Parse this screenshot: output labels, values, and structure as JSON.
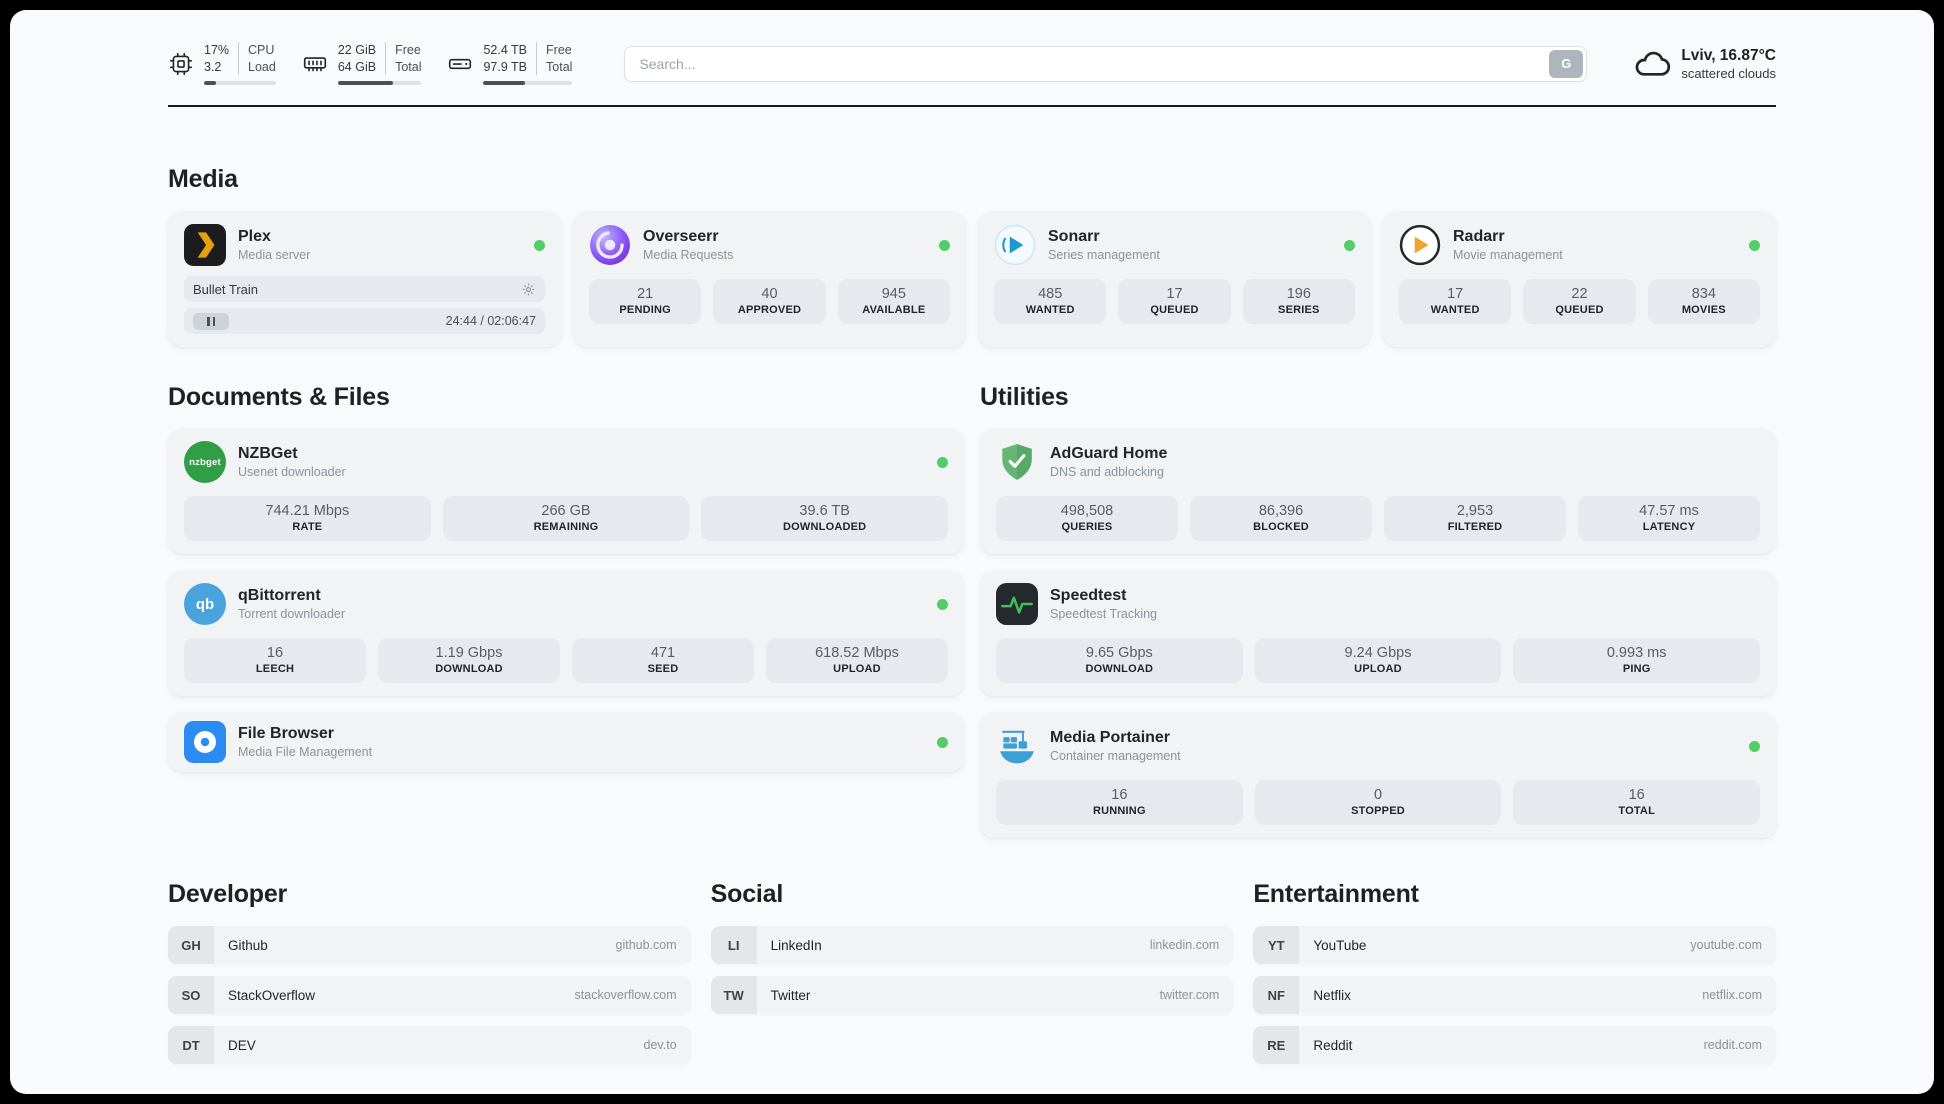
{
  "header": {
    "cpu": {
      "value_top": "17%",
      "value_bottom": "3.2",
      "label_top": "CPU",
      "label_bottom": "Load",
      "progress": 17
    },
    "ram": {
      "value_top": "22 GiB",
      "value_bottom": "64 GiB",
      "label_top": "Free",
      "label_bottom": "Total",
      "progress": 66
    },
    "disk": {
      "value_top": "52.4 TB",
      "value_bottom": "97.9 TB",
      "label_top": "Free",
      "label_bottom": "Total",
      "progress": 47
    },
    "search": {
      "placeholder": "Search...",
      "button_label": "G"
    },
    "weather": {
      "location": "Lviv, 16.87°C",
      "condition": "scattered clouds"
    }
  },
  "sections": {
    "media": {
      "title": "Media",
      "plex": {
        "name": "Plex",
        "subtitle": "Media server",
        "now_playing": "Bullet Train",
        "time": "24:44 / 02:06:47"
      },
      "overseerr": {
        "name": "Overseerr",
        "subtitle": "Media Requests",
        "stats": [
          {
            "value": "21",
            "label": "PENDING"
          },
          {
            "value": "40",
            "label": "APPROVED"
          },
          {
            "value": "945",
            "label": "AVAILABLE"
          }
        ]
      },
      "sonarr": {
        "name": "Sonarr",
        "subtitle": "Series management",
        "stats": [
          {
            "value": "485",
            "label": "WANTED"
          },
          {
            "value": "17",
            "label": "QUEUED"
          },
          {
            "value": "196",
            "label": "SERIES"
          }
        ]
      },
      "radarr": {
        "name": "Radarr",
        "subtitle": "Movie management",
        "stats": [
          {
            "value": "17",
            "label": "WANTED"
          },
          {
            "value": "22",
            "label": "QUEUED"
          },
          {
            "value": "834",
            "label": "MOVIES"
          }
        ]
      }
    },
    "documents": {
      "title": "Documents & Files",
      "nzbget": {
        "name": "NZBGet",
        "subtitle": "Usenet downloader",
        "stats": [
          {
            "value": "744.21 Mbps",
            "label": "RATE"
          },
          {
            "value": "266 GB",
            "label": "REMAINING"
          },
          {
            "value": "39.6 TB",
            "label": "DOWNLOADED"
          }
        ]
      },
      "qbittorrent": {
        "name": "qBittorrent",
        "subtitle": "Torrent downloader",
        "stats": [
          {
            "value": "16",
            "label": "LEECH"
          },
          {
            "value": "1.19 Gbps",
            "label": "DOWNLOAD"
          },
          {
            "value": "471",
            "label": "SEED"
          },
          {
            "value": "618.52 Mbps",
            "label": "UPLOAD"
          }
        ]
      },
      "filebrowser": {
        "name": "File Browser",
        "subtitle": "Media File Management"
      }
    },
    "utilities": {
      "title": "Utilities",
      "adguard": {
        "name": "AdGuard Home",
        "subtitle": "DNS and adblocking",
        "stats": [
          {
            "value": "498,508",
            "label": "QUERIES"
          },
          {
            "value": "86,396",
            "label": "BLOCKED"
          },
          {
            "value": "2,953",
            "label": "FILTERED"
          },
          {
            "value": "47.57 ms",
            "label": "LATENCY"
          }
        ]
      },
      "speedtest": {
        "name": "Speedtest",
        "subtitle": "Speedtest Tracking",
        "stats": [
          {
            "value": "9.65 Gbps",
            "label": "DOWNLOAD"
          },
          {
            "value": "9.24 Gbps",
            "label": "UPLOAD"
          },
          {
            "value": "0.993 ms",
            "label": "PING"
          }
        ]
      },
      "portainer": {
        "name": "Media Portainer",
        "subtitle": "Container management",
        "stats": [
          {
            "value": "16",
            "label": "RUNNING"
          },
          {
            "value": "0",
            "label": "STOPPED"
          },
          {
            "value": "16",
            "label": "TOTAL"
          }
        ]
      }
    },
    "developer": {
      "title": "Developer",
      "links": [
        {
          "badge": "GH",
          "name": "Github",
          "domain": "github.com"
        },
        {
          "badge": "SO",
          "name": "StackOverflow",
          "domain": "stackoverflow.com"
        },
        {
          "badge": "DT",
          "name": "DEV",
          "domain": "dev.to"
        }
      ]
    },
    "social": {
      "title": "Social",
      "links": [
        {
          "badge": "LI",
          "name": "LinkedIn",
          "domain": "linkedin.com"
        },
        {
          "badge": "TW",
          "name": "Twitter",
          "domain": "twitter.com"
        }
      ]
    },
    "entertainment": {
      "title": "Entertainment",
      "links": [
        {
          "badge": "YT",
          "name": "YouTube",
          "domain": "youtube.com"
        },
        {
          "badge": "NF",
          "name": "Netflix",
          "domain": "netflix.com"
        },
        {
          "badge": "RE",
          "name": "Reddit",
          "domain": "reddit.com"
        }
      ]
    }
  },
  "icons": {
    "nzbget_text": "nzbget",
    "qbittorrent_text": "qb"
  },
  "colors": {
    "status_online": "#51cf66",
    "plex_accent": "#e5a00d",
    "page_background": "#f9fafb",
    "card_background": "#f1f3f5",
    "tile_background": "#e6eaee"
  }
}
